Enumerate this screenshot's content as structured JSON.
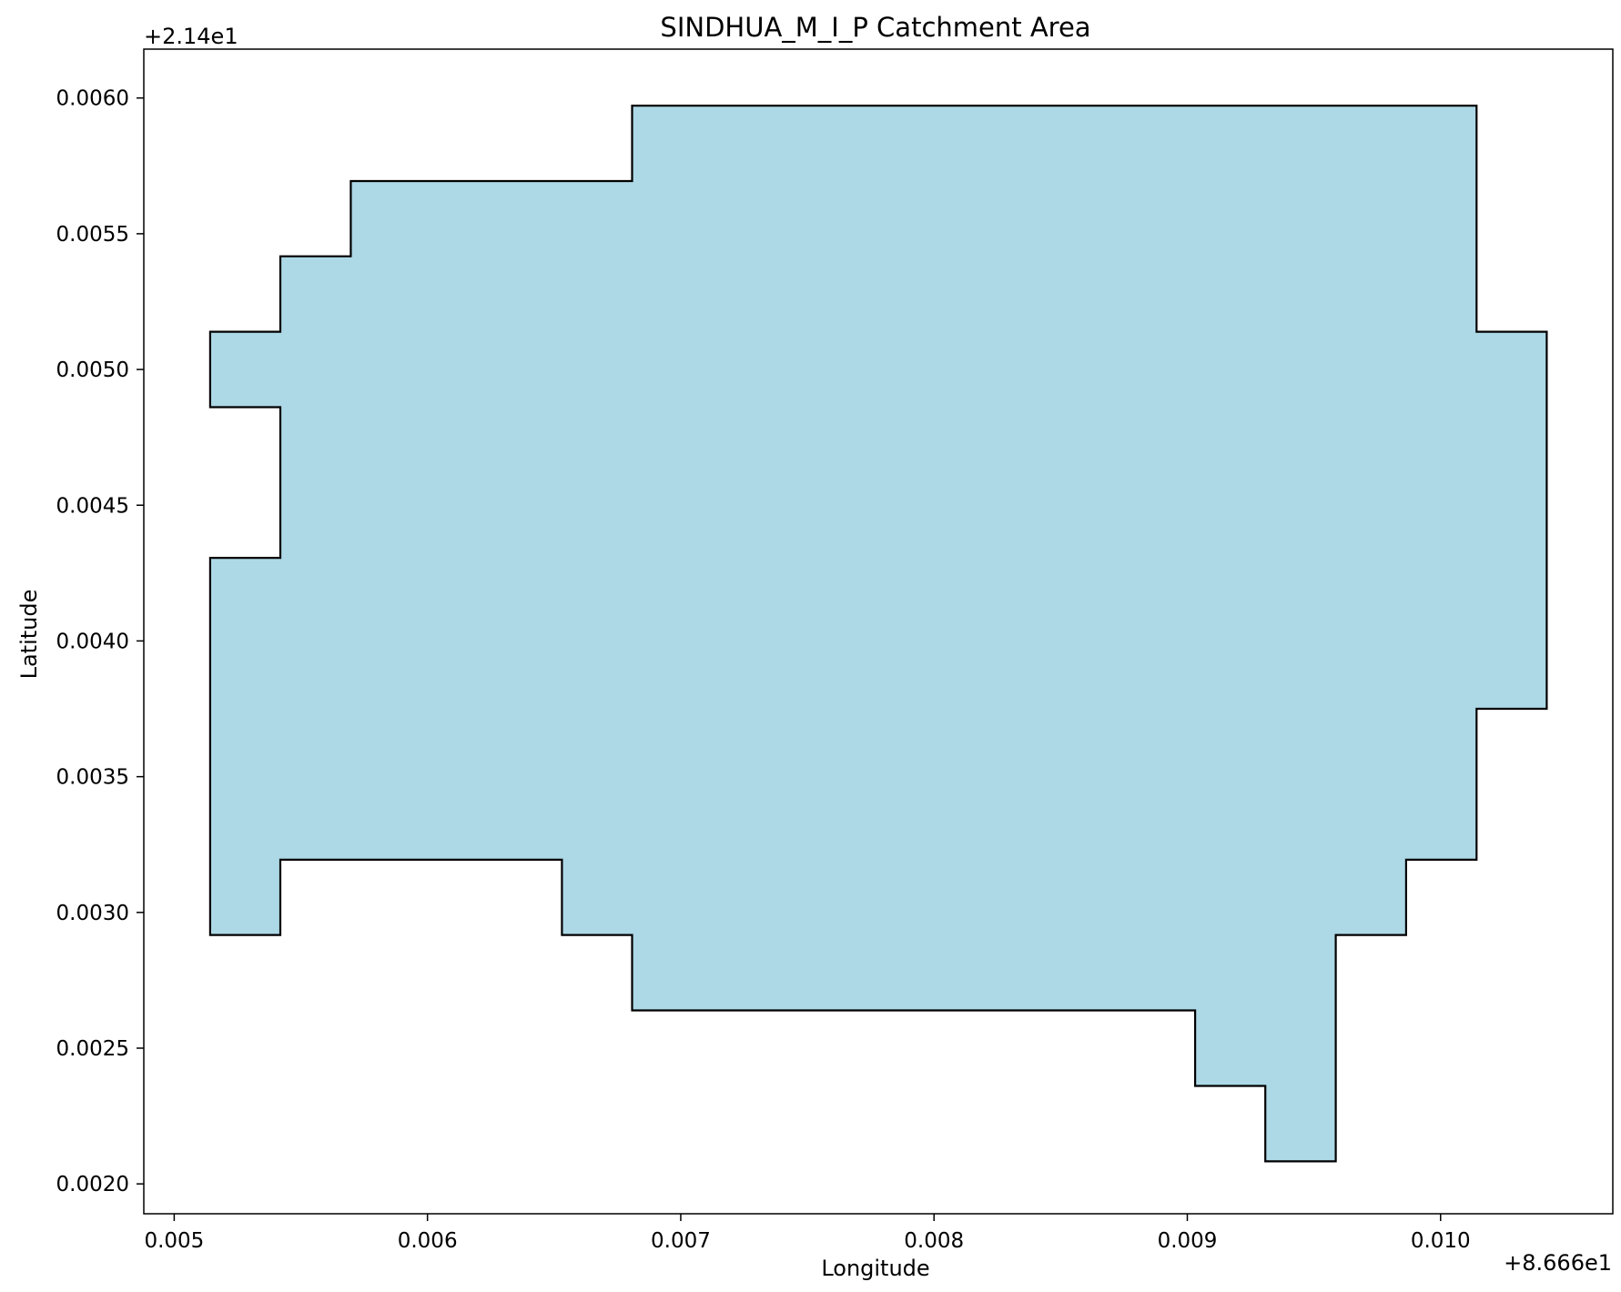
{
  "chart_data": {
    "type": "area",
    "title": "SINDHUA_M_I_P Catchment Area",
    "xlabel": "Longitude",
    "ylabel": "Latitude",
    "x_offset_label": "+8.666e1",
    "y_offset_label": "+2.14e1",
    "xlim": [
      0.00488,
      0.01068
    ],
    "ylim": [
      0.00189,
      0.00618
    ],
    "xticks": [
      {
        "value": 0.005,
        "label": "0.005"
      },
      {
        "value": 0.006,
        "label": "0.006"
      },
      {
        "value": 0.007,
        "label": "0.007"
      },
      {
        "value": 0.008,
        "label": "0.008"
      },
      {
        "value": 0.009,
        "label": "0.009"
      },
      {
        "value": 0.01,
        "label": "0.010"
      }
    ],
    "yticks": [
      {
        "value": 0.002,
        "label": "0.0020"
      },
      {
        "value": 0.0025,
        "label": "0.0025"
      },
      {
        "value": 0.003,
        "label": "0.0030"
      },
      {
        "value": 0.0035,
        "label": "0.0035"
      },
      {
        "value": 0.004,
        "label": "0.0040"
      },
      {
        "value": 0.0045,
        "label": "0.0045"
      },
      {
        "value": 0.005,
        "label": "0.0050"
      },
      {
        "value": 0.0055,
        "label": "0.0055"
      },
      {
        "value": 0.006,
        "label": "0.0060"
      }
    ],
    "grid": false,
    "fill_color": "#add8e6",
    "edge_color": "#000000",
    "polygon": [
      [
        0.005142,
        0.005139
      ],
      [
        0.005419,
        0.005139
      ],
      [
        0.005419,
        0.005417
      ],
      [
        0.005697,
        0.005417
      ],
      [
        0.005697,
        0.005694
      ],
      [
        0.006808,
        0.005694
      ],
      [
        0.006808,
        0.005972
      ],
      [
        0.010142,
        0.005972
      ],
      [
        0.010142,
        0.005139
      ],
      [
        0.010419,
        0.005139
      ],
      [
        0.010419,
        0.00375
      ],
      [
        0.010142,
        0.00375
      ],
      [
        0.010142,
        0.003194
      ],
      [
        0.009864,
        0.003194
      ],
      [
        0.009864,
        0.002917
      ],
      [
        0.009586,
        0.002917
      ],
      [
        0.009586,
        0.002083
      ],
      [
        0.009308,
        0.002083
      ],
      [
        0.009308,
        0.002361
      ],
      [
        0.009031,
        0.002361
      ],
      [
        0.009031,
        0.002639
      ],
      [
        0.006808,
        0.002639
      ],
      [
        0.006808,
        0.002917
      ],
      [
        0.006531,
        0.002917
      ],
      [
        0.006531,
        0.003194
      ],
      [
        0.005419,
        0.003194
      ],
      [
        0.005419,
        0.002917
      ],
      [
        0.005142,
        0.002917
      ],
      [
        0.005142,
        0.004306
      ],
      [
        0.005419,
        0.004306
      ],
      [
        0.005419,
        0.004861
      ],
      [
        0.005142,
        0.004861
      ]
    ]
  }
}
